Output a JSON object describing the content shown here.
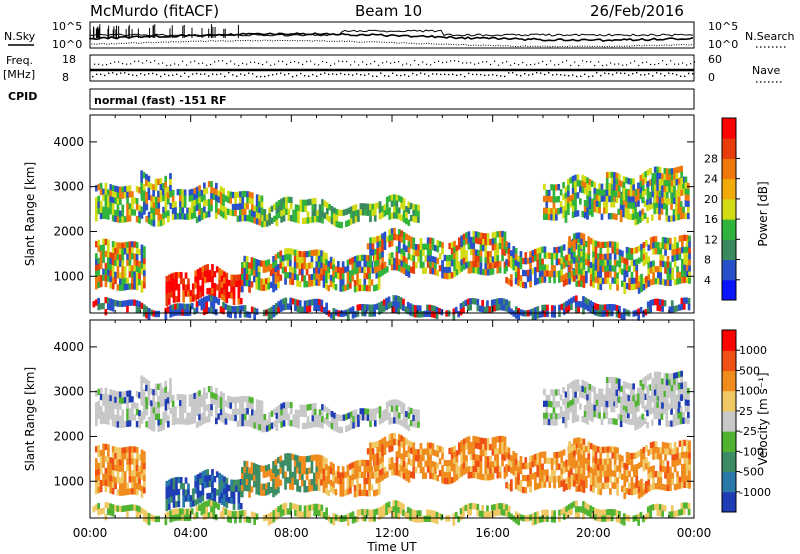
{
  "header": {
    "station": "McMurdo (fitACF)",
    "beam": "Beam 10",
    "date": "26/Feb/2016",
    "left_labels": {
      "nsky": "N.Sky",
      "freq_top": "Freq.",
      "freq_unit": "[MHz]",
      "cpid": "CPID"
    },
    "right_labels": {
      "nsearch": "N.Search",
      "nave": "Nave"
    },
    "nsky_ticks": [
      "10^5",
      "10^0"
    ],
    "nsearch_ticks": [
      "10^5",
      "10^0"
    ],
    "freq_ticks": [
      "18",
      "8"
    ],
    "nave_ticks": [
      "60",
      "0"
    ],
    "cpid_text": "normal (fast) -151 RF"
  },
  "chart_data": [
    {
      "type": "heatmap",
      "name": "power",
      "ylabel": "Slant Range [km]",
      "ylim": [
        180,
        4600
      ],
      "yticks": [
        1000,
        2000,
        3000,
        4000
      ],
      "xlim": [
        0,
        24
      ],
      "colorbar": {
        "label": "Power [dB]",
        "ticks": [
          "4",
          "8",
          "12",
          "16",
          "20",
          "24",
          "28"
        ],
        "colors": [
          "#0a14ff",
          "#2850c8",
          "#3a8a60",
          "#30b43c",
          "#d2dc14",
          "#f0aa0a",
          "#f0780a",
          "#e83c0a",
          "#ff0000"
        ]
      }
    },
    {
      "type": "heatmap",
      "name": "velocity",
      "ylabel": "Slant Range [km]",
      "ylim": [
        180,
        4600
      ],
      "yticks": [
        1000,
        2000,
        3000,
        4000
      ],
      "xlim": [
        0,
        24
      ],
      "xlabel": "Time UT",
      "xticks": [
        "00:00",
        "04:00",
        "08:00",
        "12:00",
        "16:00",
        "20:00",
        "00:00"
      ],
      "colorbar": {
        "label": "Velocity [m s⁻¹]",
        "ticks": [
          "1000",
          "500",
          "100",
          "25",
          "-25",
          "-100",
          "-500",
          "-1000"
        ],
        "colors": [
          "#1e3cb4",
          "#2878aa",
          "#3c8c64",
          "#50b432",
          "#c8c8c8",
          "#f0c864",
          "#f08c1e",
          "#f05014",
          "#ff0000"
        ]
      }
    }
  ]
}
